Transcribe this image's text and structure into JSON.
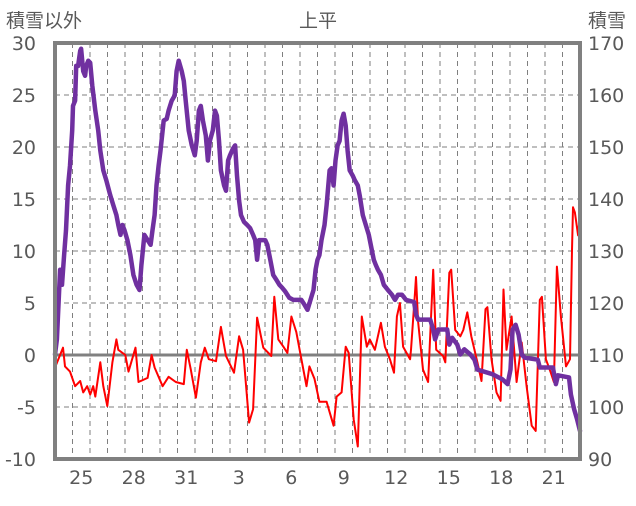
{
  "chart_data": {
    "type": "line",
    "title": "上平",
    "ylabel_left": "積雪以外",
    "ylabel_right": "積雪",
    "x_unit": "day index from left edge (Dec 24 00:00 = 0)",
    "xlim": [
      0,
      30
    ],
    "ylim_left": [
      -10,
      30
    ],
    "ylim_right": [
      90,
      170
    ],
    "yticks_left": [
      30,
      25,
      20,
      15,
      10,
      5,
      0,
      -5,
      -10
    ],
    "yticks_right": [
      170,
      160,
      150,
      140,
      130,
      120,
      110,
      100,
      90
    ],
    "xticks": [
      {
        "label": "25",
        "at": 1.5
      },
      {
        "label": "28",
        "at": 4.5
      },
      {
        "label": "31",
        "at": 7.5
      },
      {
        "label": "3",
        "at": 10.5
      },
      {
        "label": "6",
        "at": 13.5
      },
      {
        "label": "9",
        "at": 16.5
      },
      {
        "label": "12",
        "at": 19.5
      },
      {
        "label": "15",
        "at": 22.5
      },
      {
        "label": "18",
        "at": 25.5
      },
      {
        "label": "21",
        "at": 28.5
      }
    ],
    "grid": true,
    "series": [
      {
        "name": "積雪以外",
        "axis": "left",
        "color": "#FF0000",
        "points": [
          [
            0,
            -1.2
          ],
          [
            0.46,
            0.7
          ],
          [
            0.57,
            -1.1
          ],
          [
            0.86,
            -1.6
          ],
          [
            1.15,
            -3.0
          ],
          [
            1.44,
            -2.5
          ],
          [
            1.61,
            -3.6
          ],
          [
            1.84,
            -3.0
          ],
          [
            2.01,
            -3.8
          ],
          [
            2.18,
            -3.0
          ],
          [
            2.3,
            -4.0
          ],
          [
            2.59,
            -0.7
          ],
          [
            2.76,
            -3.0
          ],
          [
            2.99,
            -4.9
          ],
          [
            3.28,
            -0.7
          ],
          [
            3.51,
            1.5
          ],
          [
            3.62,
            0.5
          ],
          [
            4.02,
            0.0
          ],
          [
            4.2,
            -1.6
          ],
          [
            4.6,
            0.7
          ],
          [
            4.77,
            -2.6
          ],
          [
            5.29,
            -2.2
          ],
          [
            5.52,
            0.0
          ],
          [
            5.69,
            -1.2
          ],
          [
            6.15,
            -3.0
          ],
          [
            6.49,
            -2.1
          ],
          [
            6.9,
            -2.6
          ],
          [
            7.36,
            -2.8
          ],
          [
            7.53,
            0.5
          ],
          [
            7.76,
            -1.4
          ],
          [
            8.05,
            -4.1
          ],
          [
            8.33,
            -0.7
          ],
          [
            8.56,
            0.7
          ],
          [
            8.79,
            -0.4
          ],
          [
            9.2,
            -0.6
          ],
          [
            9.48,
            2.7
          ],
          [
            9.77,
            -0.1
          ],
          [
            10.23,
            -1.7
          ],
          [
            10.52,
            1.8
          ],
          [
            10.75,
            0.5
          ],
          [
            11.09,
            -6.5
          ],
          [
            11.32,
            -5.2
          ],
          [
            11.55,
            3.6
          ],
          [
            11.9,
            0.7
          ],
          [
            12.36,
            -0.1
          ],
          [
            12.53,
            5.6
          ],
          [
            12.76,
            1.5
          ],
          [
            13.05,
            0.8
          ],
          [
            13.28,
            0.2
          ],
          [
            13.51,
            3.7
          ],
          [
            13.79,
            2.2
          ],
          [
            14.08,
            -0.4
          ],
          [
            14.37,
            -3.0
          ],
          [
            14.54,
            -1.1
          ],
          [
            14.83,
            -2.3
          ],
          [
            15.11,
            -4.5
          ],
          [
            15.52,
            -4.5
          ],
          [
            15.92,
            -6.8
          ],
          [
            16.09,
            -4.0
          ],
          [
            16.38,
            -3.6
          ],
          [
            16.61,
            0.8
          ],
          [
            16.78,
            0.2
          ],
          [
            17.07,
            -6.2
          ],
          [
            17.3,
            -8.8
          ],
          [
            17.53,
            3.7
          ],
          [
            17.82,
            0.8
          ],
          [
            17.99,
            1.5
          ],
          [
            18.28,
            0.5
          ],
          [
            18.62,
            3.1
          ],
          [
            18.85,
            0.8
          ],
          [
            19.14,
            -0.4
          ],
          [
            19.37,
            -1.7
          ],
          [
            19.54,
            3.7
          ],
          [
            19.71,
            5.0
          ],
          [
            19.89,
            0.8
          ],
          [
            20.29,
            -0.4
          ],
          [
            20.34,
            0.5
          ],
          [
            20.57,
            6.0
          ],
          [
            20.63,
            7.5
          ],
          [
            20.75,
            3.2
          ],
          [
            21.03,
            -1.4
          ],
          [
            21.32,
            -2.6
          ],
          [
            21.61,
            8.2
          ],
          [
            21.78,
            0.5
          ],
          [
            22.18,
            -0.1
          ],
          [
            22.3,
            -0.7
          ],
          [
            22.53,
            7.9
          ],
          [
            22.64,
            8.2
          ],
          [
            22.87,
            2.4
          ],
          [
            23.16,
            1.8
          ],
          [
            23.33,
            2.4
          ],
          [
            23.56,
            4.1
          ],
          [
            23.79,
            1.8
          ],
          [
            24.14,
            -0.7
          ],
          [
            24.37,
            -2.5
          ],
          [
            24.6,
            4.4
          ],
          [
            24.71,
            4.6
          ],
          [
            24.94,
            -0.4
          ],
          [
            25.23,
            -3.6
          ],
          [
            25.46,
            -4.4
          ],
          [
            25.63,
            6.3
          ],
          [
            25.8,
            0.5
          ],
          [
            26.09,
            3.7
          ],
          [
            26.38,
            -2.6
          ],
          [
            26.67,
            1.2
          ],
          [
            26.95,
            -3.0
          ],
          [
            27.24,
            -6.8
          ],
          [
            27.47,
            -7.3
          ],
          [
            27.7,
            5.3
          ],
          [
            27.82,
            5.6
          ],
          [
            28.05,
            -0.4
          ],
          [
            28.33,
            -1.7
          ],
          [
            28.51,
            -2.6
          ],
          [
            28.68,
            8.5
          ],
          [
            28.91,
            3.7
          ],
          [
            29.2,
            -1.1
          ],
          [
            29.43,
            -0.4
          ],
          [
            29.54,
            10.1
          ],
          [
            29.6,
            14.2
          ],
          [
            29.71,
            13.7
          ],
          [
            29.89,
            11.5
          ],
          [
            29.94,
            12.5
          ],
          [
            30,
            12.0
          ]
        ]
      },
      {
        "name": "積雪",
        "axis": "right",
        "color": "#7030A0",
        "points": [
          [
            0,
            110.1
          ],
          [
            0.11,
            113.0
          ],
          [
            0.29,
            126.4
          ],
          [
            0.4,
            123.5
          ],
          [
            0.52,
            129.2
          ],
          [
            0.63,
            134.0
          ],
          [
            0.75,
            142.6
          ],
          [
            0.86,
            146.4
          ],
          [
            0.98,
            153.2
          ],
          [
            1.03,
            157.9
          ],
          [
            1.15,
            158.9
          ],
          [
            1.21,
            165.6
          ],
          [
            1.32,
            165.6
          ],
          [
            1.44,
            168.5
          ],
          [
            1.49,
            168.9
          ],
          [
            1.61,
            164.6
          ],
          [
            1.72,
            163.7
          ],
          [
            1.78,
            165.6
          ],
          [
            1.9,
            166.6
          ],
          [
            2.01,
            166.2
          ],
          [
            2.13,
            161.8
          ],
          [
            2.3,
            157.0
          ],
          [
            2.47,
            153.2
          ],
          [
            2.59,
            149.3
          ],
          [
            2.76,
            145.5
          ],
          [
            2.93,
            143.6
          ],
          [
            3.16,
            140.7
          ],
          [
            3.33,
            138.8
          ],
          [
            3.51,
            136.9
          ],
          [
            3.62,
            135.0
          ],
          [
            3.74,
            133.1
          ],
          [
            3.85,
            135.0
          ],
          [
            3.97,
            134.0
          ],
          [
            4.14,
            132.1
          ],
          [
            4.31,
            129.2
          ],
          [
            4.48,
            125.4
          ],
          [
            4.66,
            123.5
          ],
          [
            4.83,
            122.5
          ],
          [
            4.94,
            127.3
          ],
          [
            5.11,
            133.1
          ],
          [
            5.29,
            132.1
          ],
          [
            5.46,
            131.2
          ],
          [
            5.57,
            134.0
          ],
          [
            5.69,
            136.9
          ],
          [
            5.8,
            142.6
          ],
          [
            5.92,
            146.4
          ],
          [
            6.03,
            149.3
          ],
          [
            6.21,
            155.1
          ],
          [
            6.38,
            155.4
          ],
          [
            6.49,
            157.0
          ],
          [
            6.67,
            158.9
          ],
          [
            6.84,
            159.9
          ],
          [
            6.95,
            164.6
          ],
          [
            7.07,
            166.6
          ],
          [
            7.24,
            164.6
          ],
          [
            7.36,
            162.7
          ],
          [
            7.47,
            158.9
          ],
          [
            7.64,
            153.2
          ],
          [
            7.82,
            150.3
          ],
          [
            7.99,
            148.4
          ],
          [
            8.1,
            151.2
          ],
          [
            8.22,
            157.0
          ],
          [
            8.33,
            157.9
          ],
          [
            8.45,
            155.1
          ],
          [
            8.62,
            152.2
          ],
          [
            8.74,
            147.4
          ],
          [
            8.85,
            151.2
          ],
          [
            9.02,
            153.2
          ],
          [
            9.14,
            157.0
          ],
          [
            9.25,
            156.0
          ],
          [
            9.37,
            151.2
          ],
          [
            9.48,
            145.5
          ],
          [
            9.66,
            142.6
          ],
          [
            9.77,
            141.6
          ],
          [
            9.89,
            147.4
          ],
          [
            10.0,
            148.4
          ],
          [
            10.17,
            149.7
          ],
          [
            10.29,
            150.3
          ],
          [
            10.4,
            144.5
          ],
          [
            10.52,
            139.7
          ],
          [
            10.63,
            136.9
          ],
          [
            10.8,
            135.6
          ],
          [
            10.98,
            135.0
          ],
          [
            11.15,
            134.4
          ],
          [
            11.32,
            133.1
          ],
          [
            11.44,
            132.1
          ],
          [
            11.55,
            128.3
          ],
          [
            11.67,
            132.1
          ],
          [
            12.01,
            132.1
          ],
          [
            12.13,
            131.2
          ],
          [
            12.3,
            128.3
          ],
          [
            12.47,
            125.4
          ],
          [
            12.64,
            124.5
          ],
          [
            12.82,
            123.5
          ],
          [
            12.99,
            122.9
          ],
          [
            13.16,
            122.2
          ],
          [
            13.39,
            121.0
          ],
          [
            13.62,
            120.6
          ],
          [
            14.08,
            120.6
          ],
          [
            14.25,
            119.7
          ],
          [
            14.43,
            118.7
          ],
          [
            14.6,
            120.6
          ],
          [
            14.77,
            122.5
          ],
          [
            14.89,
            126.4
          ],
          [
            15.0,
            128.3
          ],
          [
            15.11,
            129.2
          ],
          [
            15.23,
            132.1
          ],
          [
            15.4,
            135.0
          ],
          [
            15.52,
            138.8
          ],
          [
            15.69,
            145.5
          ],
          [
            15.8,
            145.9
          ],
          [
            15.92,
            142.6
          ],
          [
            16.03,
            147.4
          ],
          [
            16.15,
            150.3
          ],
          [
            16.26,
            151.2
          ],
          [
            16.38,
            155.1
          ],
          [
            16.49,
            156.4
          ],
          [
            16.61,
            154.1
          ],
          [
            16.72,
            149.3
          ],
          [
            16.84,
            145.5
          ],
          [
            17.01,
            144.5
          ],
          [
            17.13,
            143.6
          ],
          [
            17.3,
            142.6
          ],
          [
            17.41,
            140.7
          ],
          [
            17.59,
            136.9
          ],
          [
            17.76,
            135.0
          ],
          [
            17.93,
            133.1
          ],
          [
            18.1,
            130.2
          ],
          [
            18.22,
            128.3
          ],
          [
            18.33,
            127.3
          ],
          [
            18.45,
            126.4
          ],
          [
            18.62,
            125.4
          ],
          [
            18.79,
            123.5
          ],
          [
            19.02,
            122.5
          ],
          [
            19.25,
            121.6
          ],
          [
            19.43,
            120.6
          ],
          [
            19.6,
            121.6
          ],
          [
            19.83,
            121.6
          ],
          [
            20.06,
            120.6
          ],
          [
            20.52,
            120.2
          ],
          [
            20.63,
            117.8
          ],
          [
            20.75,
            116.8
          ],
          [
            21.44,
            116.8
          ],
          [
            21.61,
            114.9
          ],
          [
            21.72,
            113.0
          ],
          [
            21.9,
            114.9
          ],
          [
            22.41,
            114.9
          ],
          [
            22.53,
            112.0
          ],
          [
            22.7,
            113.3
          ],
          [
            22.99,
            112.0
          ],
          [
            23.16,
            110.1
          ],
          [
            23.39,
            111.1
          ],
          [
            23.74,
            110.1
          ],
          [
            23.97,
            109.1
          ],
          [
            24.14,
            107.2
          ],
          [
            25.0,
            106.3
          ],
          [
            25.57,
            105.3
          ],
          [
            25.86,
            104.4
          ],
          [
            26.03,
            107.2
          ],
          [
            26.15,
            114.9
          ],
          [
            26.32,
            115.8
          ],
          [
            26.49,
            113.9
          ],
          [
            26.67,
            110.1
          ],
          [
            26.84,
            109.5
          ],
          [
            27.59,
            109.1
          ],
          [
            27.7,
            107.6
          ],
          [
            28.45,
            107.6
          ],
          [
            28.62,
            104.4
          ],
          [
            28.74,
            106.1
          ],
          [
            29.37,
            105.7
          ],
          [
            29.48,
            102.4
          ],
          [
            29.66,
            99.6
          ],
          [
            29.83,
            97.7
          ],
          [
            30,
            95.4
          ]
        ]
      }
    ]
  }
}
